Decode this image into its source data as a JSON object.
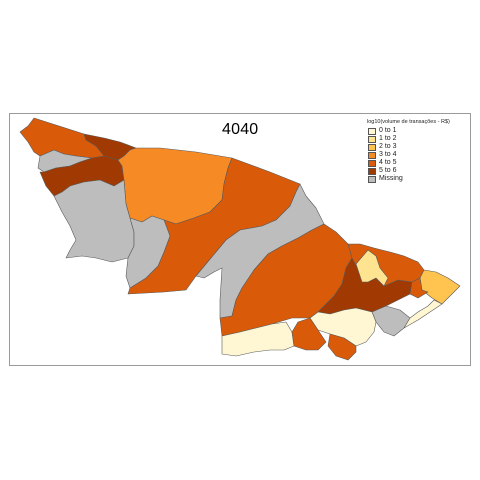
{
  "map": {
    "title": "4040",
    "legend": {
      "title": "log10(volume de transações - R$)",
      "items": [
        {
          "label": "0 to 1",
          "color": "#FFF7D4"
        },
        {
          "label": "1 to 2",
          "color": "#FEE391"
        },
        {
          "label": "2 to 3",
          "color": "#FEC44F"
        },
        {
          "label": "3 to 4",
          "color": "#F68B26"
        },
        {
          "label": "4 to 5",
          "color": "#D95B0A"
        },
        {
          "label": "5 to 6",
          "color": "#A03A02"
        },
        {
          "label": "Missing",
          "color": "#BDBDBD"
        }
      ]
    }
  }
}
